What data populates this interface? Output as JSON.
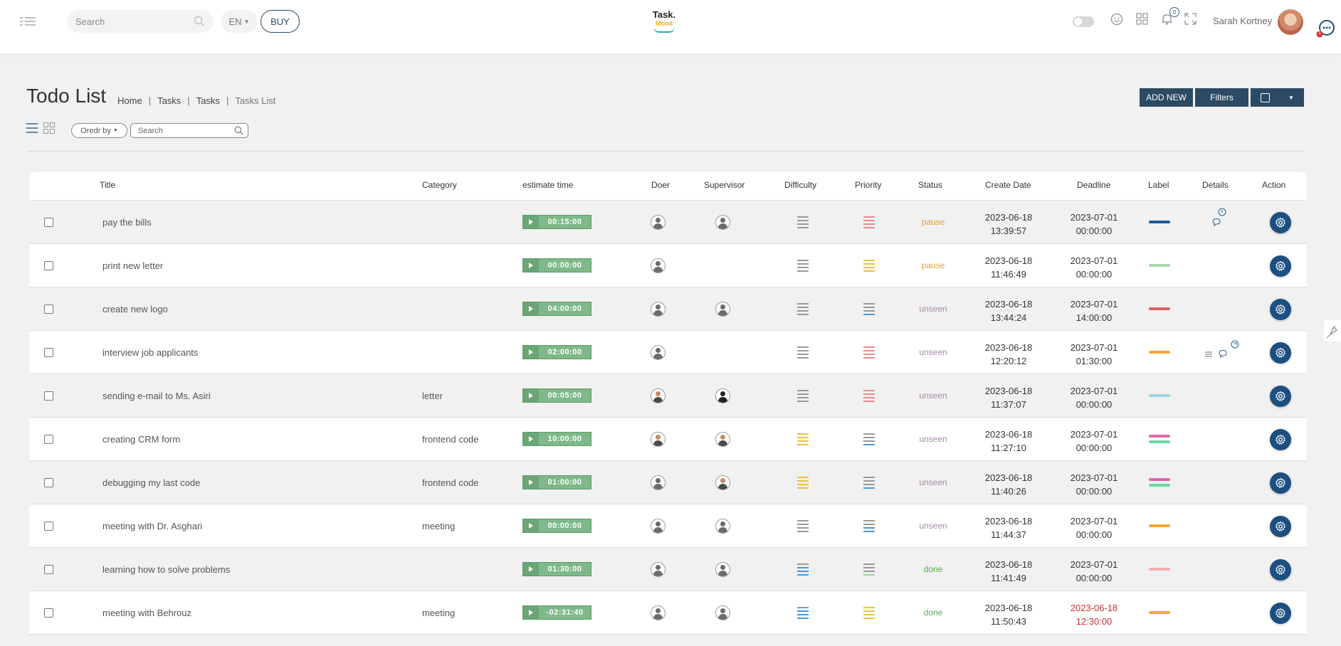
{
  "topbar": {
    "search_placeholder": "Search",
    "lang": "EN",
    "buy_label": "BUY",
    "logo_line1": "Task.",
    "logo_line2": "Mood",
    "notif_count": "0",
    "user_name": "Sarah Kortney",
    "help_count": "1"
  },
  "page": {
    "title": "Todo List",
    "breadcrumb": [
      "Home",
      "Tasks",
      "Tasks",
      "Tasks List"
    ],
    "add_new_label": "ADD NEW",
    "filters_label": "Filters",
    "order_by_label": "Oredr by",
    "search_placeholder": "Search"
  },
  "table": {
    "columns": [
      "Title",
      "Category",
      "estimate time",
      "Doer",
      "Supervisor",
      "Difficulty",
      "Priority",
      "Status",
      "Create Date",
      "Deadline",
      "Label",
      "Details",
      "Action"
    ],
    "rows": [
      {
        "title": "pay the bills",
        "category": "",
        "time": "00:15:00",
        "supervisor": true,
        "sup_kind": "man",
        "doer_kind": "man",
        "difficulty": [
          "#9a9a9a",
          "#9a9a9a",
          "#9a9a9a",
          "#9a9a9a"
        ],
        "priority": [
          "#e88a8a",
          "#e88a8a",
          "#e88a8a",
          "#e88a8a"
        ],
        "status": "pause",
        "status_color": "#e0a040",
        "create_date": "2023-06-18",
        "create_time": "13:39:57",
        "deadline_date": "2023-07-01",
        "deadline_time": "00:00:00",
        "deadline_color": "#333333",
        "labels": [
          "#1d5c9a"
        ],
        "details": "clock-comment"
      },
      {
        "title": "print new letter",
        "category": "",
        "time": "00:00:00",
        "supervisor": false,
        "sup_kind": "",
        "doer_kind": "man",
        "difficulty": [
          "#9a9a9a",
          "#9a9a9a",
          "#9a9a9a",
          "#9a9a9a"
        ],
        "priority": [
          "#e8c24a",
          "#e8c24a",
          "#e8c24a",
          "#e8c24a"
        ],
        "status": "pause",
        "status_color": "#e0a040",
        "create_date": "2023-06-18",
        "create_time": "11:46:49",
        "deadline_date": "2023-07-01",
        "deadline_time": "00:00:00",
        "deadline_color": "#333333",
        "labels": [
          "#a8d8a8"
        ],
        "details": ""
      },
      {
        "title": "create new logo",
        "category": "",
        "time": "04:00:00",
        "supervisor": true,
        "sup_kind": "man",
        "doer_kind": "man",
        "difficulty": [
          "#9a9a9a",
          "#9a9a9a",
          "#9a9a9a",
          "#9a9a9a"
        ],
        "priority": [
          "#9a9a9a",
          "#9a9a9a",
          "#9a9a9a",
          "#4a9ad8"
        ],
        "status": "unseen",
        "status_color": "#a48aa8",
        "create_date": "2023-06-18",
        "create_time": "13:44:24",
        "deadline_date": "2023-07-01",
        "deadline_time": "14:00:00",
        "deadline_color": "#333333",
        "labels": [
          "#e06060"
        ],
        "details": ""
      },
      {
        "title": "interview job applicants",
        "category": "",
        "time": "02:00:00",
        "supervisor": false,
        "sup_kind": "",
        "doer_kind": "man",
        "difficulty": [
          "#9a9a9a",
          "#9a9a9a",
          "#9a9a9a",
          "#9a9a9a"
        ],
        "priority": [
          "#e88a8a",
          "#e88a8a",
          "#e88a8a",
          "#e88a8a"
        ],
        "status": "unseen",
        "status_color": "#a48aa8",
        "create_date": "2023-06-18",
        "create_time": "12:20:12",
        "deadline_date": "2023-07-01",
        "deadline_time": "01:30:00",
        "deadline_color": "#333333",
        "labels": [
          "#f5a830"
        ],
        "details": "list-comment-badge"
      },
      {
        "title": "sending e-mail to Ms. Asiri",
        "category": "letter",
        "time": "00:05:00",
        "supervisor": true,
        "sup_kind": "hij",
        "doer_kind": "alt",
        "difficulty": [
          "#9a9a9a",
          "#9a9a9a",
          "#9a9a9a",
          "#9a9a9a"
        ],
        "priority": [
          "#e88a8a",
          "#e88a8a",
          "#e88a8a",
          "#e88a8a"
        ],
        "status": "unseen",
        "status_color": "#a48aa8",
        "create_date": "2023-06-18",
        "create_time": "11:37:07",
        "deadline_date": "2023-07-01",
        "deadline_time": "00:00:00",
        "deadline_color": "#333333",
        "labels": [
          "#9ad8e0"
        ],
        "details": ""
      },
      {
        "title": "creating CRM form",
        "category": "frontend code",
        "time": "10:00:00",
        "supervisor": true,
        "sup_kind": "alt",
        "doer_kind": "alt",
        "difficulty": [
          "#e8c24a",
          "#e8c24a",
          "#e8c24a",
          "#e8c24a"
        ],
        "priority": [
          "#9a9a9a",
          "#9a9a9a",
          "#9a9a9a",
          "#4a9ad8"
        ],
        "status": "unseen",
        "status_color": "#a48aa8",
        "create_date": "2023-06-18",
        "create_time": "11:27:10",
        "deadline_date": "2023-07-01",
        "deadline_time": "00:00:00",
        "deadline_color": "#333333",
        "labels": [
          "#e06aa8",
          "#6ad8a0"
        ],
        "details": ""
      },
      {
        "title": "debugging my last code",
        "category": "frontend code",
        "time": "01:00:00",
        "supervisor": true,
        "sup_kind": "alt",
        "doer_kind": "man",
        "difficulty": [
          "#e8c24a",
          "#e8c24a",
          "#e8c24a",
          "#e8c24a"
        ],
        "priority": [
          "#9a9a9a",
          "#9a9a9a",
          "#9a9a9a",
          "#4a9ad8"
        ],
        "status": "unseen",
        "status_color": "#a48aa8",
        "create_date": "2023-06-18",
        "create_time": "11:40:26",
        "deadline_date": "2023-07-01",
        "deadline_time": "00:00:00",
        "deadline_color": "#333333",
        "labels": [
          "#d86ab0",
          "#6ad8a0"
        ],
        "details": ""
      },
      {
        "title": "meeting with Dr. Asghari",
        "category": "meeting",
        "time": "00:00:00",
        "supervisor": true,
        "sup_kind": "man",
        "doer_kind": "man",
        "difficulty": [
          "#9a9a9a",
          "#9a9a9a",
          "#9a9a9a",
          "#9a9a9a"
        ],
        "priority": [
          "#9a9a9a",
          "#9a9a9a",
          "#4a9ad8",
          "#4a9ad8"
        ],
        "status": "unseen",
        "status_color": "#a48aa8",
        "create_date": "2023-06-18",
        "create_time": "11:44:37",
        "deadline_date": "2023-07-01",
        "deadline_time": "00:00:00",
        "deadline_color": "#333333",
        "labels": [
          "#f5a830"
        ],
        "details": ""
      },
      {
        "title": "learning how to solve problems",
        "category": "",
        "time": "01:30:00",
        "supervisor": true,
        "sup_kind": "man",
        "doer_kind": "man",
        "difficulty": [
          "#9a9a9a",
          "#4a9ad8",
          "#4a9ad8",
          "#4a9ad8"
        ],
        "priority": [
          "#9a9a9a",
          "#9a9a9a",
          "#9a9a9a",
          "#9ad89a"
        ],
        "status": "done",
        "status_color": "#5aa85a",
        "create_date": "2023-06-18",
        "create_time": "11:41:49",
        "deadline_date": "2023-07-01",
        "deadline_time": "00:00:00",
        "deadline_color": "#333333",
        "labels": [
          "#f0b0b0"
        ],
        "details": ""
      },
      {
        "title": "meeting with Behrouz",
        "category": "meeting",
        "time": "-02:31:40",
        "supervisor": true,
        "sup_kind": "man",
        "doer_kind": "man",
        "difficulty": [
          "#9a9a9a",
          "#4a9ad8",
          "#4a9ad8",
          "#4a9ad8"
        ],
        "priority": [
          "#e8c24a",
          "#e8c24a",
          "#e8c24a",
          "#e8c24a"
        ],
        "status": "done",
        "status_color": "#5aa85a",
        "create_date": "2023-06-18",
        "create_time": "11:50:43",
        "deadline_date": "2023-06-18",
        "deadline_time": "12:30:00",
        "deadline_color": "#d03030",
        "labels": [
          "#f5a830"
        ],
        "details": ""
      }
    ]
  }
}
